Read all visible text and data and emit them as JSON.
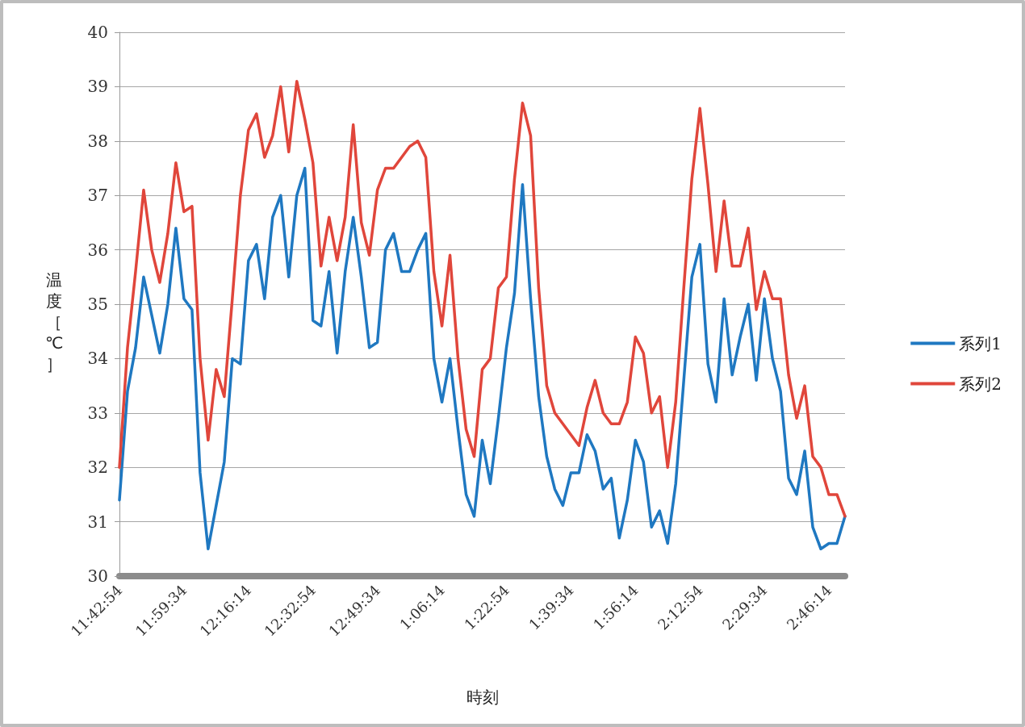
{
  "chart_data": {
    "type": "line",
    "xlabel": "時刻",
    "ylabel": "温度［℃］",
    "categories": [
      "11:42:54",
      null,
      null,
      null,
      null,
      null,
      null,
      null,
      "11:59:34",
      null,
      null,
      null,
      null,
      null,
      null,
      null,
      "12:16:14",
      null,
      null,
      null,
      null,
      null,
      null,
      null,
      "12:32:54",
      null,
      null,
      null,
      null,
      null,
      null,
      null,
      "12:49:34",
      null,
      null,
      null,
      null,
      null,
      null,
      null,
      "1:06:14",
      null,
      null,
      null,
      null,
      null,
      null,
      null,
      "1:22:54",
      null,
      null,
      null,
      null,
      null,
      null,
      null,
      "1:39:34",
      null,
      null,
      null,
      null,
      null,
      null,
      null,
      "1:56:14",
      null,
      null,
      null,
      null,
      null,
      null,
      null,
      "2:12:54",
      null,
      null,
      null,
      null,
      null,
      null,
      null,
      "2:29:34",
      null,
      null,
      null,
      null,
      null,
      null,
      null,
      "2:46:14",
      null,
      null
    ],
    "ylim": [
      30,
      40
    ],
    "yticks": [
      30,
      31,
      32,
      33,
      34,
      35,
      36,
      37,
      38,
      39,
      40
    ],
    "grid": "y",
    "legend": "right",
    "marker": "none",
    "line_style": "solid",
    "series": [
      {
        "name": "系列1",
        "color": "#1f78c1",
        "values": [
          31.4,
          33.4,
          34.2,
          35.5,
          34.8,
          34.1,
          35.0,
          36.4,
          35.1,
          34.9,
          31.9,
          30.5,
          31.3,
          32.1,
          34.0,
          33.9,
          35.8,
          36.1,
          35.1,
          36.6,
          37.0,
          35.5,
          37.0,
          37.5,
          34.7,
          34.6,
          35.6,
          34.1,
          35.6,
          36.6,
          35.5,
          34.2,
          34.3,
          36.0,
          36.3,
          35.6,
          35.6,
          36.0,
          36.3,
          34.0,
          33.2,
          34.0,
          32.7,
          31.5,
          31.1,
          32.5,
          31.7,
          32.9,
          34.2,
          35.2,
          37.2,
          35.1,
          33.3,
          32.2,
          31.6,
          31.3,
          31.9,
          31.9,
          32.6,
          32.3,
          31.6,
          31.8,
          30.7,
          31.4,
          32.5,
          32.1,
          30.9,
          31.2,
          30.6,
          31.7,
          33.6,
          35.5,
          36.1,
          33.9,
          33.2,
          35.1,
          33.7,
          34.4,
          35.0,
          33.6,
          35.1,
          34.0,
          33.4,
          31.8,
          31.5,
          32.3,
          30.9,
          30.5,
          30.6,
          30.6,
          31.1
        ]
      },
      {
        "name": "系列2",
        "color": "#e0463b",
        "values": [
          32.0,
          34.2,
          35.6,
          37.1,
          36.0,
          35.4,
          36.3,
          37.6,
          36.7,
          36.8,
          34.0,
          32.5,
          33.8,
          33.3,
          35.1,
          37.0,
          38.2,
          38.5,
          37.7,
          38.1,
          39.0,
          37.8,
          39.1,
          38.4,
          37.6,
          35.7,
          36.6,
          35.8,
          36.6,
          38.3,
          36.5,
          35.9,
          37.1,
          37.5,
          37.5,
          37.7,
          37.9,
          38.0,
          37.7,
          35.6,
          34.6,
          35.9,
          34.0,
          32.7,
          32.2,
          33.8,
          34.0,
          35.3,
          35.5,
          37.3,
          38.7,
          38.1,
          35.3,
          33.5,
          33.0,
          32.8,
          32.6,
          32.4,
          33.1,
          33.6,
          33.0,
          32.8,
          32.8,
          33.2,
          34.4,
          34.1,
          33.0,
          33.3,
          32.0,
          33.2,
          35.3,
          37.3,
          38.6,
          37.2,
          35.6,
          36.9,
          35.7,
          35.7,
          36.4,
          34.9,
          35.6,
          35.1,
          35.1,
          33.7,
          32.9,
          33.5,
          32.2,
          32.0,
          31.5,
          31.5,
          31.1
        ]
      }
    ]
  }
}
